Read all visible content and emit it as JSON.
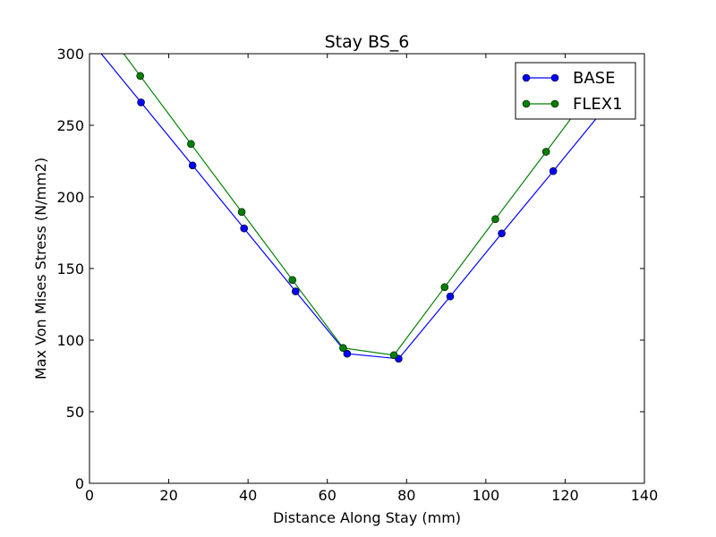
{
  "chart_data": {
    "type": "line",
    "title": "Stay BS_6",
    "xlabel": "Distance Along Stay (mm)",
    "ylabel": "Max Von Mises Stress (N/mm2)",
    "xlim": [
      0,
      140
    ],
    "ylim": [
      0,
      300
    ],
    "xticks": [
      0,
      20,
      40,
      60,
      80,
      100,
      120,
      140
    ],
    "yticks": [
      0,
      50,
      100,
      150,
      200,
      250,
      300
    ],
    "xtick_labels": [
      "0",
      "20",
      "40",
      "60",
      "80",
      "100",
      "120",
      "140"
    ],
    "ytick_labels": [
      "0",
      "50",
      "100",
      "150",
      "200",
      "250",
      "300"
    ],
    "grid": false,
    "legend_position": "top-right",
    "series": [
      {
        "name": "BASE",
        "color": "#0000ff",
        "x": [
          0,
          13,
          26,
          39,
          52,
          65,
          78,
          91,
          104,
          117,
          130
        ],
        "y": [
          310,
          266,
          222,
          178,
          134,
          90.5,
          87,
          130.5,
          174.5,
          218,
          262
        ]
      },
      {
        "name": "FLEX1",
        "color": "#008000",
        "x": [
          0,
          12.8,
          25.6,
          38.4,
          51.2,
          64,
          76.8,
          89.6,
          102.4,
          115.2,
          128
        ],
        "y": [
          332,
          284.5,
          237,
          189.5,
          142,
          94.5,
          89.5,
          137,
          184.5,
          231.5,
          279
        ]
      }
    ]
  }
}
